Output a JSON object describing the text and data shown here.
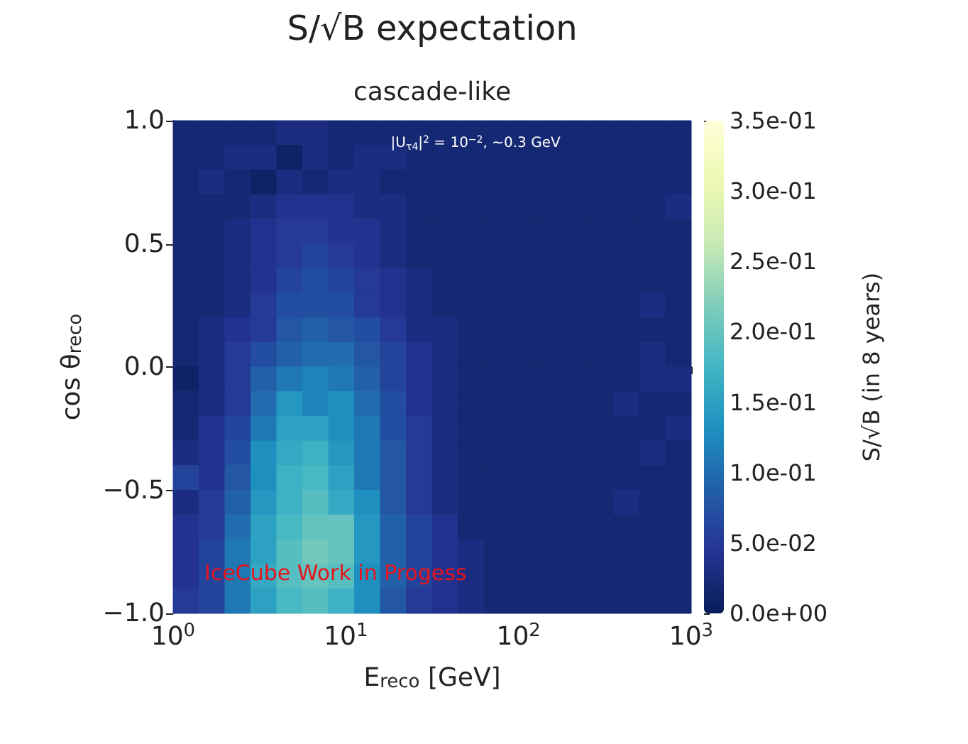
{
  "chart_data": {
    "type": "heatmap",
    "title": "S/√B expectation",
    "subtitle": "cascade-like",
    "xlabel": "E$_{reco}$ [GeV]",
    "ylabel": "cos θ$_{reco}$",
    "clabel": "S/√B (in 8 years)",
    "annotations": [
      "|U$_{τ4}$|$^{2}$ = 10$^{−2}$, ~0.3 GeV",
      "IceCube Work in Progess"
    ],
    "log": "x",
    "xlim": [
      1,
      1000
    ],
    "xticks": [
      {
        "value": 1,
        "label": "10$^{0}$"
      },
      {
        "value": 10,
        "label": "10$^{1}$"
      },
      {
        "value": 100,
        "label": "10$^{2}$"
      },
      {
        "value": 1000,
        "label": "10$^{3}$"
      }
    ],
    "ylim": [
      -1,
      1
    ],
    "yticks": [
      {
        "value": -1,
        "label": "−1.0"
      },
      {
        "value": -0.5,
        "label": "−0.5"
      },
      {
        "value": 0,
        "label": "0.0"
      },
      {
        "value": 0.5,
        "label": "0.5"
      },
      {
        "value": 1,
        "label": "1.0"
      }
    ],
    "clim": [
      0,
      0.35
    ],
    "cticks": [
      {
        "value": 0,
        "label": "0.0e+00"
      },
      {
        "value": 0.05,
        "label": "5.0e-02"
      },
      {
        "value": 0.1,
        "label": "1.0e-01"
      },
      {
        "value": 0.15,
        "label": "1.5e-01"
      },
      {
        "value": 0.2,
        "label": "2.0e-01"
      },
      {
        "value": 0.25,
        "label": "2.5e-01"
      },
      {
        "value": 0.3,
        "label": "3.0e-01"
      },
      {
        "value": 0.35,
        "label": "3.5e-01"
      }
    ],
    "cells": [
      [
        0.02,
        0.02,
        0.02,
        0.02,
        0.03,
        0.03,
        0.02,
        0.02,
        0.02,
        0.02,
        0.02,
        0.02,
        0.02,
        0.02,
        0.02,
        0.02,
        0.02,
        0.02,
        0.02,
        0.02
      ],
      [
        0.02,
        0.02,
        0.03,
        0.03,
        0.01,
        0.03,
        0.02,
        0.03,
        0.03,
        0.02,
        0.02,
        0.02,
        0.02,
        0.02,
        0.02,
        0.02,
        0.02,
        0.02,
        0.02,
        0.02
      ],
      [
        0.02,
        0.03,
        0.02,
        0.01,
        0.03,
        0.02,
        0.03,
        0.03,
        0.02,
        0.02,
        0.02,
        0.02,
        0.02,
        0.02,
        0.02,
        0.02,
        0.02,
        0.02,
        0.02,
        0.02
      ],
      [
        0.02,
        0.02,
        0.02,
        0.03,
        0.04,
        0.04,
        0.04,
        0.03,
        0.03,
        0.02,
        0.02,
        0.02,
        0.02,
        0.02,
        0.02,
        0.02,
        0.02,
        0.02,
        0.02,
        0.03
      ],
      [
        0.02,
        0.02,
        0.03,
        0.04,
        0.05,
        0.05,
        0.04,
        0.04,
        0.03,
        0.02,
        0.02,
        0.02,
        0.02,
        0.02,
        0.02,
        0.02,
        0.02,
        0.02,
        0.02,
        0.02
      ],
      [
        0.02,
        0.02,
        0.03,
        0.04,
        0.05,
        0.06,
        0.05,
        0.04,
        0.03,
        0.02,
        0.02,
        0.02,
        0.02,
        0.02,
        0.02,
        0.02,
        0.02,
        0.02,
        0.02,
        0.02
      ],
      [
        0.02,
        0.02,
        0.03,
        0.04,
        0.06,
        0.07,
        0.06,
        0.05,
        0.04,
        0.03,
        0.02,
        0.02,
        0.02,
        0.02,
        0.02,
        0.02,
        0.02,
        0.02,
        0.02,
        0.02
      ],
      [
        0.02,
        0.02,
        0.03,
        0.05,
        0.07,
        0.07,
        0.07,
        0.05,
        0.04,
        0.03,
        0.02,
        0.02,
        0.02,
        0.02,
        0.02,
        0.02,
        0.02,
        0.02,
        0.03,
        0.02
      ],
      [
        0.02,
        0.03,
        0.04,
        0.05,
        0.08,
        0.09,
        0.08,
        0.07,
        0.05,
        0.03,
        0.03,
        0.02,
        0.02,
        0.02,
        0.02,
        0.02,
        0.02,
        0.02,
        0.02,
        0.02
      ],
      [
        0.02,
        0.03,
        0.05,
        0.07,
        0.09,
        0.1,
        0.1,
        0.08,
        0.06,
        0.04,
        0.03,
        0.02,
        0.02,
        0.02,
        0.02,
        0.02,
        0.02,
        0.02,
        0.03,
        0.02
      ],
      [
        0.01,
        0.03,
        0.05,
        0.09,
        0.11,
        0.12,
        0.11,
        0.09,
        0.06,
        0.04,
        0.03,
        0.02,
        0.02,
        0.02,
        0.02,
        0.02,
        0.02,
        0.02,
        0.03,
        0.03
      ],
      [
        0.02,
        0.03,
        0.05,
        0.1,
        0.14,
        0.12,
        0.13,
        0.1,
        0.07,
        0.04,
        0.03,
        0.02,
        0.02,
        0.02,
        0.02,
        0.02,
        0.02,
        0.03,
        0.02,
        0.02
      ],
      [
        0.02,
        0.04,
        0.06,
        0.11,
        0.15,
        0.15,
        0.13,
        0.11,
        0.07,
        0.05,
        0.03,
        0.02,
        0.02,
        0.02,
        0.02,
        0.02,
        0.02,
        0.02,
        0.02,
        0.03
      ],
      [
        0.03,
        0.04,
        0.07,
        0.13,
        0.16,
        0.17,
        0.14,
        0.11,
        0.08,
        0.05,
        0.03,
        0.02,
        0.02,
        0.02,
        0.02,
        0.02,
        0.02,
        0.02,
        0.03,
        0.02
      ],
      [
        0.06,
        0.04,
        0.08,
        0.13,
        0.17,
        0.18,
        0.15,
        0.11,
        0.08,
        0.05,
        0.03,
        0.02,
        0.02,
        0.02,
        0.02,
        0.02,
        0.02,
        0.02,
        0.02,
        0.02
      ],
      [
        0.03,
        0.05,
        0.09,
        0.14,
        0.17,
        0.19,
        0.16,
        0.13,
        0.08,
        0.05,
        0.03,
        0.02,
        0.02,
        0.02,
        0.02,
        0.02,
        0.02,
        0.03,
        0.02,
        0.02
      ],
      [
        0.04,
        0.05,
        0.1,
        0.15,
        0.18,
        0.2,
        0.2,
        0.14,
        0.09,
        0.06,
        0.04,
        0.02,
        0.02,
        0.02,
        0.02,
        0.02,
        0.02,
        0.02,
        0.02,
        0.02
      ],
      [
        0.04,
        0.06,
        0.11,
        0.15,
        0.19,
        0.21,
        0.2,
        0.14,
        0.09,
        0.06,
        0.04,
        0.03,
        0.02,
        0.02,
        0.02,
        0.02,
        0.02,
        0.02,
        0.02,
        0.02
      ],
      [
        0.04,
        0.06,
        0.11,
        0.16,
        0.19,
        0.2,
        0.19,
        0.13,
        0.09,
        0.06,
        0.04,
        0.03,
        0.02,
        0.02,
        0.02,
        0.02,
        0.02,
        0.02,
        0.02,
        0.02
      ],
      [
        0.05,
        0.06,
        0.11,
        0.15,
        0.18,
        0.19,
        0.17,
        0.13,
        0.08,
        0.05,
        0.04,
        0.03,
        0.02,
        0.02,
        0.02,
        0.02,
        0.02,
        0.02,
        0.02,
        0.02
      ]
    ]
  }
}
